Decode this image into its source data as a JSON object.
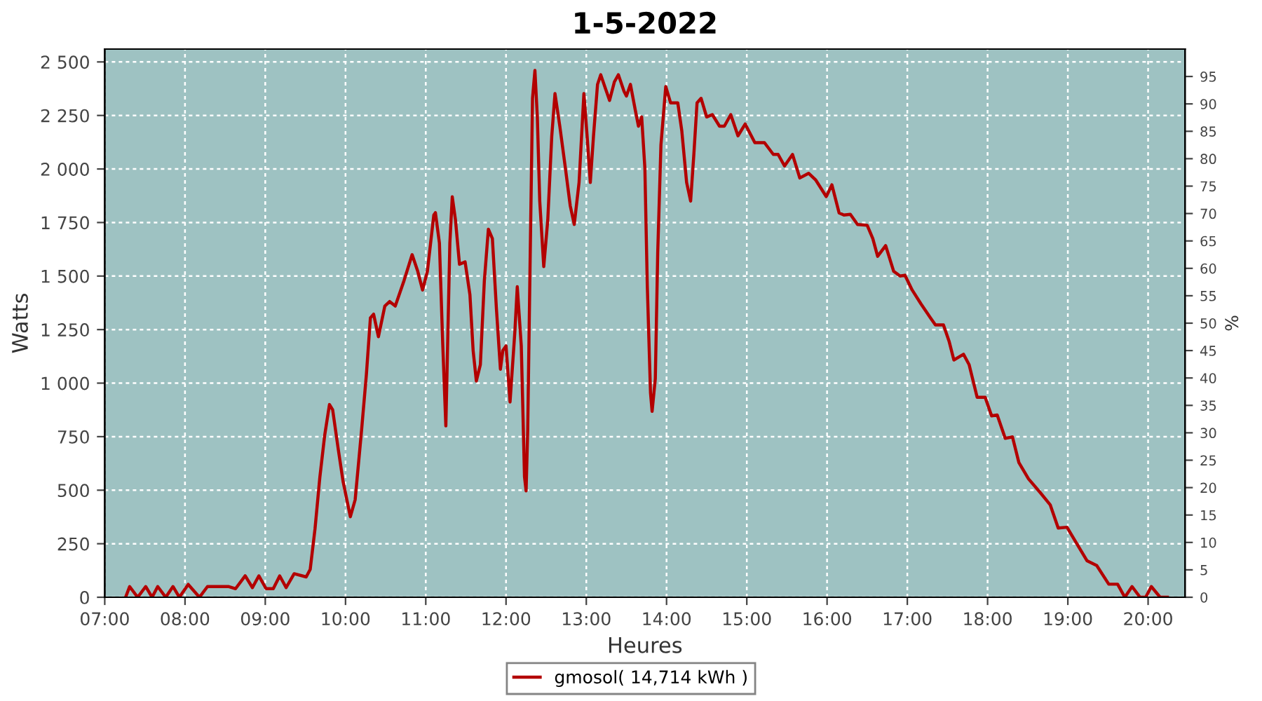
{
  "chart_data": {
    "type": "line",
    "title": "1-5-2022",
    "xlabel": "Heures",
    "ylabel": "Watts",
    "y2label": "%",
    "xlim": [
      7,
      20.46
    ],
    "xticks": [
      {
        "value": 7,
        "label": "07:00"
      },
      {
        "value": 8,
        "label": "08:00"
      },
      {
        "value": 9,
        "label": "09:00"
      },
      {
        "value": 10,
        "label": "10:00"
      },
      {
        "value": 11,
        "label": "11:00"
      },
      {
        "value": 12,
        "label": "12:00"
      },
      {
        "value": 13,
        "label": "13:00"
      },
      {
        "value": 14,
        "label": "14:00"
      },
      {
        "value": 15,
        "label": "15:00"
      },
      {
        "value": 16,
        "label": "16:00"
      },
      {
        "value": 17,
        "label": "17:00"
      },
      {
        "value": 18,
        "label": "18:00"
      },
      {
        "value": 19,
        "label": "19:00"
      },
      {
        "value": 20,
        "label": "20:00"
      }
    ],
    "ylim": [
      0,
      2560
    ],
    "yticks": [
      0,
      250,
      500,
      750,
      {
        "value": 1000,
        "label": "1 000"
      },
      {
        "value": 1250,
        "label": "1 250"
      },
      {
        "value": 1500,
        "label": "1 500"
      },
      {
        "value": 1750,
        "label": "1 750"
      },
      {
        "value": 2000,
        "label": "2 000"
      },
      {
        "value": 2250,
        "label": "2 250"
      },
      {
        "value": 2500,
        "label": "2 500"
      }
    ],
    "y2lim": [
      0,
      100
    ],
    "y2ticks": [
      0,
      5,
      10,
      15,
      20,
      25,
      30,
      35,
      40,
      45,
      50,
      55,
      60,
      65,
      70,
      75,
      80,
      85,
      90,
      95
    ],
    "grid": true,
    "legend": "bottom",
    "marker": "none",
    "line_style": "solid",
    "series": [
      {
        "name": "gmosol( 14,714 kWh )",
        "color": "#b30000",
        "x": [
          7.26,
          7.31,
          7.41,
          7.51,
          7.59,
          7.66,
          7.76,
          7.85,
          7.93,
          8.04,
          8.18,
          8.28,
          8.54,
          8.63,
          8.75,
          8.84,
          8.92,
          9.01,
          9.1,
          9.18,
          9.26,
          9.36,
          9.51,
          9.56,
          9.62,
          9.68,
          9.74,
          9.8,
          9.84,
          9.91,
          9.97,
          10.06,
          10.12,
          10.2,
          10.26,
          10.31,
          10.35,
          10.41,
          10.49,
          10.55,
          10.62,
          10.73,
          10.83,
          10.9,
          10.96,
          11.02,
          11.1,
          11.12,
          11.17,
          11.21,
          11.25,
          11.3,
          11.33,
          11.37,
          11.42,
          11.49,
          11.55,
          11.59,
          11.63,
          11.68,
          11.73,
          11.78,
          11.83,
          11.88,
          11.93,
          11.96,
          12.0,
          12.05,
          12.11,
          12.14,
          12.19,
          12.23,
          12.25,
          12.27,
          12.3,
          12.33,
          12.36,
          12.39,
          12.42,
          12.47,
          12.52,
          12.57,
          12.61,
          12.67,
          12.74,
          12.8,
          12.85,
          12.91,
          12.97,
          13.01,
          13.05,
          13.09,
          13.14,
          13.18,
          13.24,
          13.29,
          13.35,
          13.4,
          13.47,
          13.5,
          13.55,
          13.61,
          13.65,
          13.69,
          13.73,
          13.76,
          13.8,
          13.82,
          13.86,
          13.89,
          13.93,
          13.99,
          14.05,
          14.14,
          14.19,
          14.25,
          14.3,
          14.34,
          14.38,
          14.43,
          14.5,
          14.57,
          14.66,
          14.72,
          14.8,
          14.89,
          14.98,
          15.1,
          15.22,
          15.33,
          15.39,
          15.47,
          15.57,
          15.66,
          15.77,
          15.86,
          15.99,
          16.06,
          16.15,
          16.21,
          16.29,
          16.38,
          16.5,
          16.57,
          16.63,
          16.73,
          16.83,
          16.91,
          16.97,
          17.06,
          17.17,
          17.29,
          17.35,
          17.45,
          17.52,
          17.58,
          17.7,
          17.77,
          17.87,
          17.97,
          18.05,
          18.12,
          18.22,
          18.31,
          18.39,
          18.51,
          18.66,
          18.78,
          18.88,
          18.99,
          19.1,
          19.24,
          19.36,
          19.51,
          19.62,
          19.71,
          19.8,
          19.9,
          19.97,
          20.04,
          20.15,
          20.24
        ],
        "values": [
          0,
          50,
          0,
          50,
          0,
          50,
          0,
          50,
          0,
          60,
          0,
          50,
          50,
          40,
          100,
          45,
          100,
          40,
          40,
          100,
          45,
          110,
          95,
          130,
          320,
          560,
          755,
          900,
          875,
          690,
          540,
          376,
          455,
          780,
          1040,
          1305,
          1322,
          1217,
          1360,
          1381,
          1360,
          1480,
          1600,
          1522,
          1435,
          1522,
          1785,
          1796,
          1654,
          1196,
          800,
          1654,
          1870,
          1762,
          1555,
          1566,
          1413,
          1152,
          1010,
          1086,
          1479,
          1719,
          1675,
          1348,
          1065,
          1152,
          1174,
          912,
          1240,
          1450,
          1174,
          563,
          497,
          780,
          1566,
          2330,
          2460,
          2243,
          1850,
          1544,
          1762,
          2155,
          2352,
          2200,
          2003,
          1828,
          1741,
          1937,
          2352,
          2155,
          1937,
          2155,
          2395,
          2440,
          2374,
          2320,
          2407,
          2440,
          2363,
          2341,
          2395,
          2276,
          2200,
          2243,
          2003,
          1457,
          955,
          868,
          1021,
          1610,
          2112,
          2385,
          2309,
          2309,
          2178,
          1937,
          1850,
          2068,
          2309,
          2330,
          2243,
          2254,
          2200,
          2200,
          2254,
          2155,
          2210,
          2123,
          2123,
          2068,
          2068,
          2014,
          2068,
          1958,
          1980,
          1948,
          1871,
          1926,
          1795,
          1785,
          1788,
          1741,
          1737,
          1675,
          1592,
          1642,
          1522,
          1500,
          1504,
          1435,
          1370,
          1304,
          1272,
          1272,
          1196,
          1108,
          1135,
          1086,
          934,
          934,
          847,
          851,
          742,
          749,
          629,
          553,
          487,
          432,
          323,
          327,
          257,
          170,
          148,
          61,
          61,
          0,
          50,
          0,
          0,
          50,
          0,
          0
        ]
      }
    ]
  }
}
